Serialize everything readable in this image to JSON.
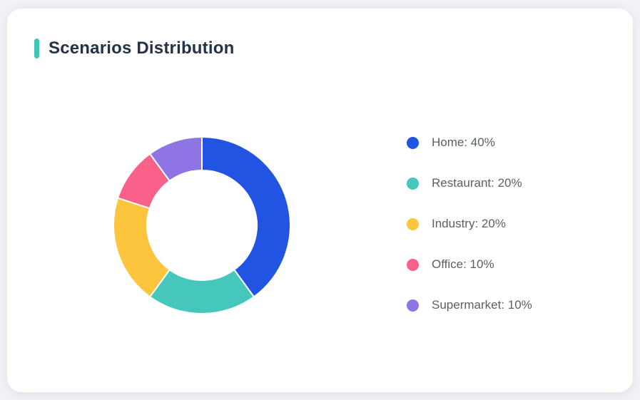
{
  "card": {
    "title": "Scenarios Distribution"
  },
  "accent_color": "#3fc6b7",
  "chart_data": {
    "type": "pie",
    "subtype": "donut",
    "title": "Scenarios Distribution",
    "categories": [
      "Home",
      "Restaurant",
      "Industry",
      "Office",
      "Supermarket"
    ],
    "values": [
      40,
      20,
      20,
      10,
      10
    ],
    "unit": "%",
    "colors": [
      "#2154e0",
      "#45c7bb",
      "#fdc43e",
      "#f9618a",
      "#8f74e4"
    ],
    "start_angle_deg": 0,
    "direction": "clockwise",
    "inner_radius_ratio": 0.62,
    "segment_gap_color": "#ffffff",
    "legend_position": "right",
    "legend": [
      {
        "label": "Home: 40%",
        "color": "#2154e0"
      },
      {
        "label": "Restaurant: 20%",
        "color": "#45c7bb"
      },
      {
        "label": "Industry: 20%",
        "color": "#fdc43e"
      },
      {
        "label": "Office: 10%",
        "color": "#f9618a"
      },
      {
        "label": "Supermarket: 10%",
        "color": "#8f74e4"
      }
    ]
  }
}
